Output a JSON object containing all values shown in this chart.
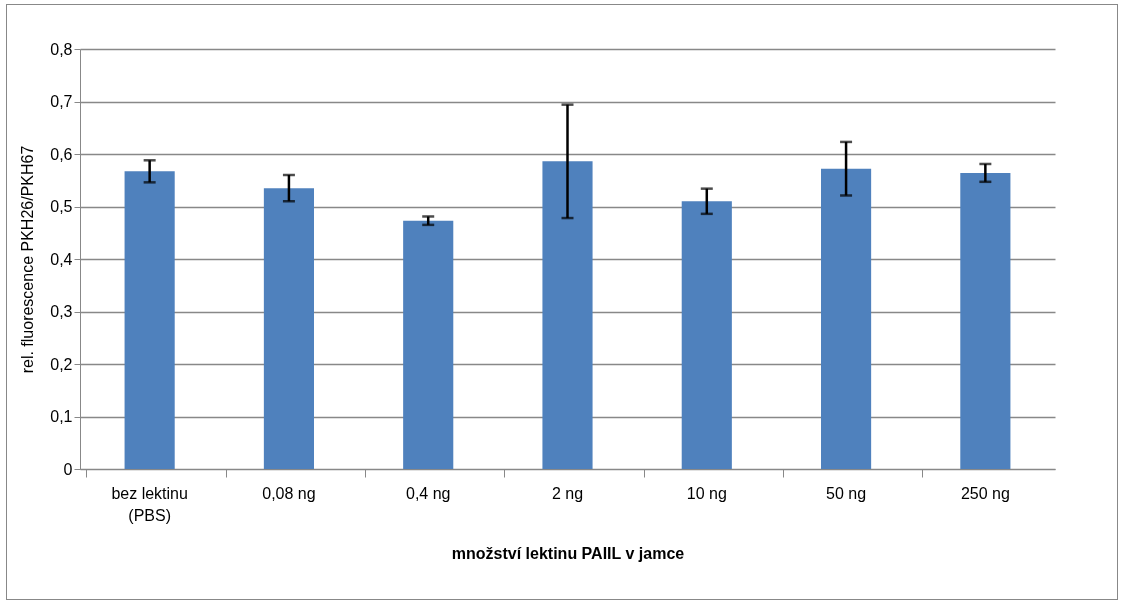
{
  "chart_data": {
    "type": "bar",
    "xlabel": "množství lektinu PAIIL v jamce",
    "ylabel": "rel. fluorescence PKH26/PKH67",
    "categories": [
      "bez lektinu\n(PBS)",
      "0,08 ng",
      "0,4 ng",
      "2 ng",
      "10 ng",
      "50 ng",
      "250 ng"
    ],
    "values": [
      0.567,
      0.535,
      0.473,
      0.586,
      0.51,
      0.572,
      0.564
    ],
    "errors": [
      0.021,
      0.025,
      0.008,
      0.108,
      0.024,
      0.051,
      0.017
    ],
    "color": "#4f81bd",
    "ylim": [
      0,
      0.8
    ],
    "yticks": [
      {
        "value": 0,
        "label": "0"
      },
      {
        "value": 0.1,
        "label": "0,1"
      },
      {
        "value": 0.2,
        "label": "0,2"
      },
      {
        "value": 0.3,
        "label": "0,3"
      },
      {
        "value": 0.4,
        "label": "0,4"
      },
      {
        "value": 0.5,
        "label": "0,5"
      },
      {
        "value": 0.6,
        "label": "0,6"
      },
      {
        "value": 0.7,
        "label": "0,7"
      },
      {
        "value": 0.8,
        "label": "0,8"
      }
    ],
    "grid": "y"
  }
}
